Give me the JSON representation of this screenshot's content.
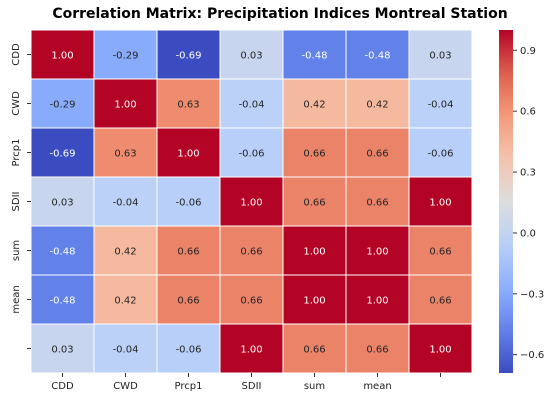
{
  "chart_data": {
    "type": "heatmap",
    "title": "Correlation Matrix: Precipitation Indices Montreal Station",
    "x_labels": [
      "CDD",
      "CWD",
      "Prcp1",
      "SDII",
      "sum",
      "mean",
      ""
    ],
    "y_labels": [
      "CDD",
      "CWD",
      "Prcp1",
      "SDII",
      "sum",
      "mean",
      ""
    ],
    "values": [
      [
        1.0,
        -0.29,
        -0.69,
        0.03,
        -0.48,
        -0.48,
        0.03
      ],
      [
        -0.29,
        1.0,
        0.63,
        -0.04,
        0.42,
        0.42,
        -0.04
      ],
      [
        -0.69,
        0.63,
        1.0,
        -0.06,
        0.66,
        0.66,
        -0.06
      ],
      [
        0.03,
        -0.04,
        -0.06,
        1.0,
        0.66,
        0.66,
        1.0
      ],
      [
        -0.48,
        0.42,
        0.66,
        0.66,
        1.0,
        1.0,
        0.66
      ],
      [
        -0.48,
        0.42,
        0.66,
        0.66,
        1.0,
        1.0,
        0.66
      ],
      [
        0.03,
        -0.04,
        -0.06,
        1.0,
        0.66,
        0.66,
        1.0
      ]
    ],
    "value_labels": [
      [
        "1.00",
        "-0.29",
        "-0.69",
        "0.03",
        "-0.48",
        "-0.48",
        "0.03"
      ],
      [
        "-0.29",
        "1.00",
        "0.63",
        "-0.04",
        "0.42",
        "0.42",
        "-0.04"
      ],
      [
        "-0.69",
        "0.63",
        "1.00",
        "-0.06",
        "0.66",
        "0.66",
        "-0.06"
      ],
      [
        "0.03",
        "-0.04",
        "-0.06",
        "1.00",
        "0.66",
        "0.66",
        "1.00"
      ],
      [
        "-0.48",
        "0.42",
        "0.66",
        "0.66",
        "1.00",
        "1.00",
        "0.66"
      ],
      [
        "-0.48",
        "0.42",
        "0.66",
        "0.66",
        "1.00",
        "1.00",
        "0.66"
      ],
      [
        "0.03",
        "-0.04",
        "-0.06",
        "1.00",
        "0.66",
        "0.66",
        "1.00"
      ]
    ],
    "colormap": "coolwarm",
    "color_range": [
      -0.69,
      1.0
    ],
    "colorbar_ticks": [
      "0.9",
      "0.6",
      "0.3",
      "0.0",
      "−0.3",
      "−0.6"
    ],
    "colorbar_tick_values": [
      0.9,
      0.6,
      0.3,
      0.0,
      -0.3,
      -0.6
    ],
    "colors": {
      "low": "#3b4cc0",
      "mid": "#dddddd",
      "high": "#b40426",
      "text_dark": "#262626",
      "text_light": "#ffffff",
      "grid_line": "#ffffff"
    }
  }
}
